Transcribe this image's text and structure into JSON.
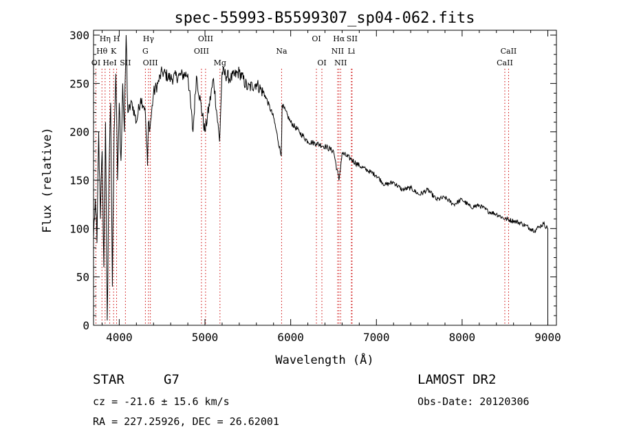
{
  "chart_data": {
    "type": "line",
    "title": "spec-55993-B5599307_sp04-062.fits",
    "xlabel": "Wavelength (Å)",
    "ylabel": "Flux (relative)",
    "xlim": [
      3700,
      9100
    ],
    "ylim": [
      0,
      305
    ],
    "x_ticks": [
      4000,
      5000,
      6000,
      7000,
      8000,
      9000
    ],
    "y_ticks": [
      0,
      50,
      100,
      150,
      200,
      250,
      300
    ],
    "grid": false,
    "series": [
      {
        "x": [
          3700,
          3720,
          3740,
          3760,
          3780,
          3800,
          3820,
          3840,
          3860,
          3880,
          3900,
          3920,
          3940,
          3960,
          3980,
          4000,
          4020,
          4040,
          4060,
          4080,
          4100,
          4150,
          4200,
          4250,
          4300,
          4330,
          4340,
          4360,
          4400,
          4450,
          4500,
          4600,
          4700,
          4800,
          4860,
          4900,
          5000,
          5100,
          5170,
          5200,
          5300,
          5400,
          5500,
          5600,
          5700,
          5800,
          5890,
          5900,
          6000,
          6100,
          6200,
          6300,
          6400,
          6500,
          6563,
          6600,
          6700,
          6800,
          6900,
          7000,
          7100,
          7200,
          7300,
          7400,
          7500,
          7600,
          7700,
          7800,
          7900,
          8000,
          8100,
          8200,
          8300,
          8400,
          8500,
          8600,
          8700,
          8800,
          8850,
          8900,
          8950,
          9000
        ],
        "y": [
          90,
          130,
          85,
          200,
          110,
          180,
          60,
          210,
          5,
          150,
          230,
          40,
          200,
          260,
          150,
          230,
          170,
          250,
          200,
          300,
          220,
          230,
          210,
          235,
          225,
          165,
          210,
          205,
          240,
          250,
          262,
          255,
          258,
          260,
          200,
          258,
          200,
          255,
          190,
          262,
          255,
          262,
          245,
          250,
          238,
          215,
          175,
          228,
          210,
          200,
          190,
          188,
          185,
          180,
          150,
          178,
          172,
          165,
          160,
          155,
          145,
          148,
          140,
          142,
          135,
          140,
          130,
          132,
          125,
          130,
          122,
          124,
          118,
          115,
          110,
          108,
          105,
          100,
          98,
          102,
          105,
          100
        ]
      }
    ],
    "line_markers": [
      {
        "label": "OI",
        "x": 3728,
        "row": 3
      },
      {
        "label": "Hθ",
        "x": 3798,
        "row": 2
      },
      {
        "label": "Hη",
        "x": 3835,
        "row": 1
      },
      {
        "label": "HeI",
        "x": 3889,
        "row": 3
      },
      {
        "label": "K",
        "x": 3934,
        "row": 2
      },
      {
        "label": "H",
        "x": 3969,
        "row": 1
      },
      {
        "label": "SII",
        "x": 4072,
        "row": 3
      },
      {
        "label": "Hγ",
        "x": 4341,
        "row": 1
      },
      {
        "label": "G",
        "x": 4305,
        "row": 2
      },
      {
        "label": "OIII",
        "x": 4363,
        "row": 3
      },
      {
        "label": "OIII",
        "x": 5007,
        "row": 1
      },
      {
        "label": "OIII",
        "x": 4959,
        "row": 2
      },
      {
        "label": "Mg",
        "x": 5175,
        "row": 3
      },
      {
        "label": "Na",
        "x": 5894,
        "row": 2
      },
      {
        "label": "OI",
        "x": 6300,
        "row": 1
      },
      {
        "label": "OI",
        "x": 6364,
        "row": 3
      },
      {
        "label": "Hα",
        "x": 6563,
        "row": 1
      },
      {
        "label": "NII",
        "x": 6548,
        "row": 2
      },
      {
        "label": "NII",
        "x": 6583,
        "row": 3
      },
      {
        "label": "SII",
        "x": 6716,
        "row": 1
      },
      {
        "label": "Li",
        "x": 6708,
        "row": 2
      },
      {
        "label": "CaII",
        "x": 8542,
        "row": 2
      },
      {
        "label": "CaII",
        "x": 8498,
        "row": 3
      }
    ],
    "colors": {
      "spectrum": "#000000",
      "markers": "#cc0000",
      "axes": "#000000"
    }
  },
  "info": {
    "object_class": "STAR",
    "subclass": "G7",
    "survey": "LAMOST DR2",
    "cz": "cz = -21.6 ± 15.6 km/s",
    "obs_date": "Obs-Date: 20120306",
    "coords": "RA = 227.25926, DEC =  26.62001"
  }
}
